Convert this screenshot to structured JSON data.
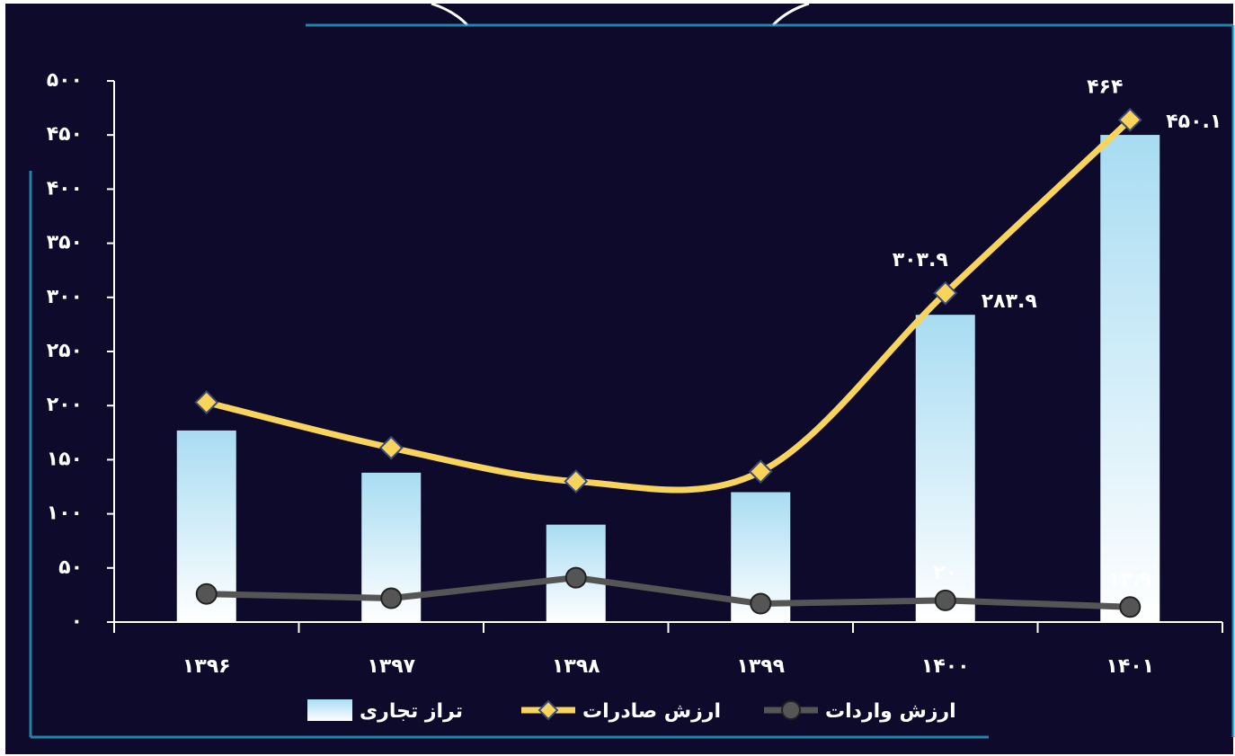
{
  "chart_data": {
    "type": "bar",
    "categories": [
      "۱۳۹۶",
      "۱۳۹۷",
      "۱۳۹۸",
      "۱۳۹۹",
      "۱۴۰۰",
      "۱۴۰۱"
    ],
    "series": [
      {
        "name": "تراز تجاری",
        "type": "bar",
        "color": "#a8dcf2",
        "values": [
          177,
          138,
          90,
          120,
          283.9,
          450.1
        ],
        "value_labels": [
          null,
          null,
          null,
          null,
          "۲۸۳.۹",
          "۴۵۰.۱"
        ],
        "label_color": "#a8dcf2"
      },
      {
        "name": "ارزش صادرات",
        "type": "line",
        "marker": "diamond",
        "smooth": true,
        "color": "#f9d45c",
        "values": [
          203,
          161,
          130,
          139,
          303.9,
          464
        ],
        "value_labels": [
          null,
          null,
          null,
          null,
          "۳۰۳.۹",
          "۴۶۴"
        ],
        "label_color": "#f5c842"
      },
      {
        "name": "ارزش واردات",
        "type": "line",
        "marker": "circle",
        "smooth": false,
        "color": "#555555",
        "values": [
          26,
          22,
          41,
          17,
          20,
          13.9
        ],
        "value_labels": [
          null,
          null,
          null,
          null,
          "۲۰",
          "۱۳.۹"
        ],
        "label_color": "#ffffff"
      }
    ],
    "ylim": [
      0,
      500
    ],
    "yticks": [
      {
        "value": 0,
        "label": "۰"
      },
      {
        "value": 50,
        "label": "۵۰"
      },
      {
        "value": 100,
        "label": "۱۰۰"
      },
      {
        "value": 150,
        "label": "۱۵۰"
      },
      {
        "value": 200,
        "label": "۲۰۰"
      },
      {
        "value": 250,
        "label": "۲۵۰"
      },
      {
        "value": 300,
        "label": "۳۰۰"
      },
      {
        "value": 350,
        "label": "۳۵۰"
      },
      {
        "value": 400,
        "label": "۴۰۰"
      },
      {
        "value": 450,
        "label": "۴۵۰"
      },
      {
        "value": 500,
        "label": "۵۰۰"
      }
    ],
    "grid": false,
    "legend": "bottom"
  }
}
